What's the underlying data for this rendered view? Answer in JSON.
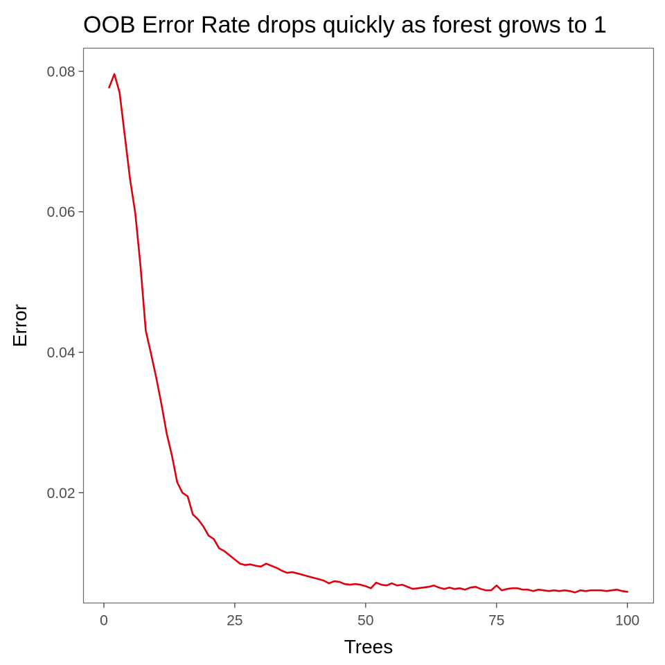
{
  "chart_data": {
    "type": "line",
    "title": "OOB Error Rate drops quickly as forest grows to 1",
    "xlabel": "Trees",
    "ylabel": "Error",
    "xlim": [
      -3.9,
      105
    ],
    "ylim": [
      0.0043,
      0.0833
    ],
    "x_ticks": [
      0,
      25,
      50,
      75,
      100
    ],
    "x_tick_labels": [
      "0",
      "25",
      "50",
      "75",
      "100"
    ],
    "y_ticks": [
      0.02,
      0.04,
      0.06,
      0.08
    ],
    "y_tick_labels": [
      "0.02",
      "0.04",
      "0.06",
      "0.08"
    ],
    "grid": false,
    "series": [
      {
        "color": "#e0000d",
        "x": [
          1,
          2,
          3,
          4,
          5,
          6,
          7,
          8,
          9,
          10,
          11,
          12,
          13,
          14,
          15,
          16,
          17,
          18,
          19,
          20,
          21,
          22,
          23,
          24,
          25,
          26,
          27,
          28,
          29,
          30,
          31,
          32,
          33,
          34,
          35,
          36,
          37,
          38,
          39,
          40,
          41,
          42,
          43,
          44,
          45,
          46,
          47,
          48,
          49,
          50,
          51,
          52,
          53,
          54,
          55,
          56,
          57,
          58,
          59,
          60,
          61,
          62,
          63,
          64,
          65,
          66,
          67,
          68,
          69,
          70,
          71,
          72,
          73,
          74,
          75,
          76,
          77,
          78,
          79,
          80,
          81,
          82,
          83,
          84,
          85,
          86,
          87,
          88,
          89,
          90,
          91,
          92,
          93,
          94,
          95,
          96,
          97,
          98,
          99,
          100
        ],
        "values": [
          0.0777,
          0.0796,
          0.077,
          0.0708,
          0.0646,
          0.0598,
          0.0522,
          0.0431,
          0.0398,
          0.0364,
          0.0326,
          0.0284,
          0.0253,
          0.0215,
          0.02,
          0.0195,
          0.0169,
          0.0162,
          0.0152,
          0.0139,
          0.0134,
          0.0121,
          0.0117,
          0.0111,
          0.0105,
          0.0099,
          0.0097,
          0.0098,
          0.0096,
          0.0095,
          0.0099,
          0.0096,
          0.0093,
          0.0089,
          0.0086,
          0.0087,
          0.0085,
          0.0083,
          0.0081,
          0.0079,
          0.0077,
          0.0075,
          0.0071,
          0.0074,
          0.0073,
          0.007,
          0.0069,
          0.007,
          0.0069,
          0.0067,
          0.0064,
          0.0072,
          0.0069,
          0.0068,
          0.0071,
          0.0068,
          0.0069,
          0.0066,
          0.0063,
          0.0064,
          0.0065,
          0.0066,
          0.0068,
          0.0065,
          0.0063,
          0.0065,
          0.0063,
          0.0064,
          0.0062,
          0.0065,
          0.0066,
          0.0063,
          0.0061,
          0.0061,
          0.0068,
          0.0061,
          0.0063,
          0.0064,
          0.0064,
          0.0062,
          0.0062,
          0.006,
          0.0062,
          0.0061,
          0.006,
          0.0061,
          0.006,
          0.0061,
          0.006,
          0.0058,
          0.0061,
          0.006,
          0.0061,
          0.0061,
          0.0061,
          0.006,
          0.0061,
          0.0062,
          0.006,
          0.0059
        ]
      }
    ]
  }
}
